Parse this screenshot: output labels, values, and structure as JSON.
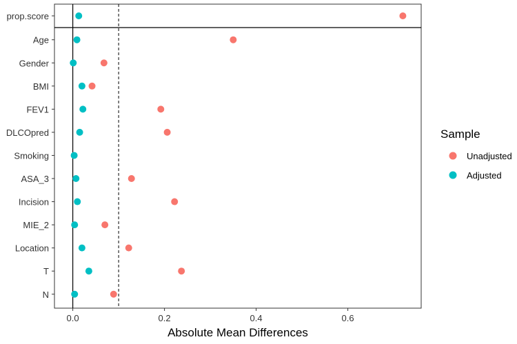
{
  "chart_data": {
    "type": "scatter",
    "xlabel": "Absolute Mean Differences",
    "ylabel": "",
    "title": "",
    "xlim": [
      -0.04,
      0.76
    ],
    "x_ticks": [
      0.0,
      0.2,
      0.4,
      0.6
    ],
    "x_tick_labels": [
      "0.0",
      "0.2",
      "0.4",
      "0.6"
    ],
    "threshold": 0.1,
    "categories": [
      "prop.score",
      "Age",
      "Gender",
      "BMI",
      "FEV1",
      "DLCOpred",
      "Smoking",
      "ASA_3",
      "Incision",
      "MIE_2",
      "Location",
      "T",
      "N"
    ],
    "series": [
      {
        "name": "Unadjusted",
        "color": "#F8766D",
        "values": [
          0.72,
          0.35,
          0.068,
          0.042,
          0.192,
          0.206,
          null,
          0.128,
          0.222,
          0.07,
          0.122,
          0.237,
          0.089
        ]
      },
      {
        "name": "Adjusted",
        "color": "#00BFC4",
        "values": [
          0.013,
          0.009,
          0.001,
          0.02,
          0.022,
          0.015,
          0.003,
          0.007,
          0.01,
          0.004,
          0.02,
          0.035,
          0.004
        ]
      }
    ],
    "legend": {
      "title": "Sample",
      "entries": [
        "Unadjusted",
        "Adjusted"
      ],
      "position": "right"
    }
  }
}
